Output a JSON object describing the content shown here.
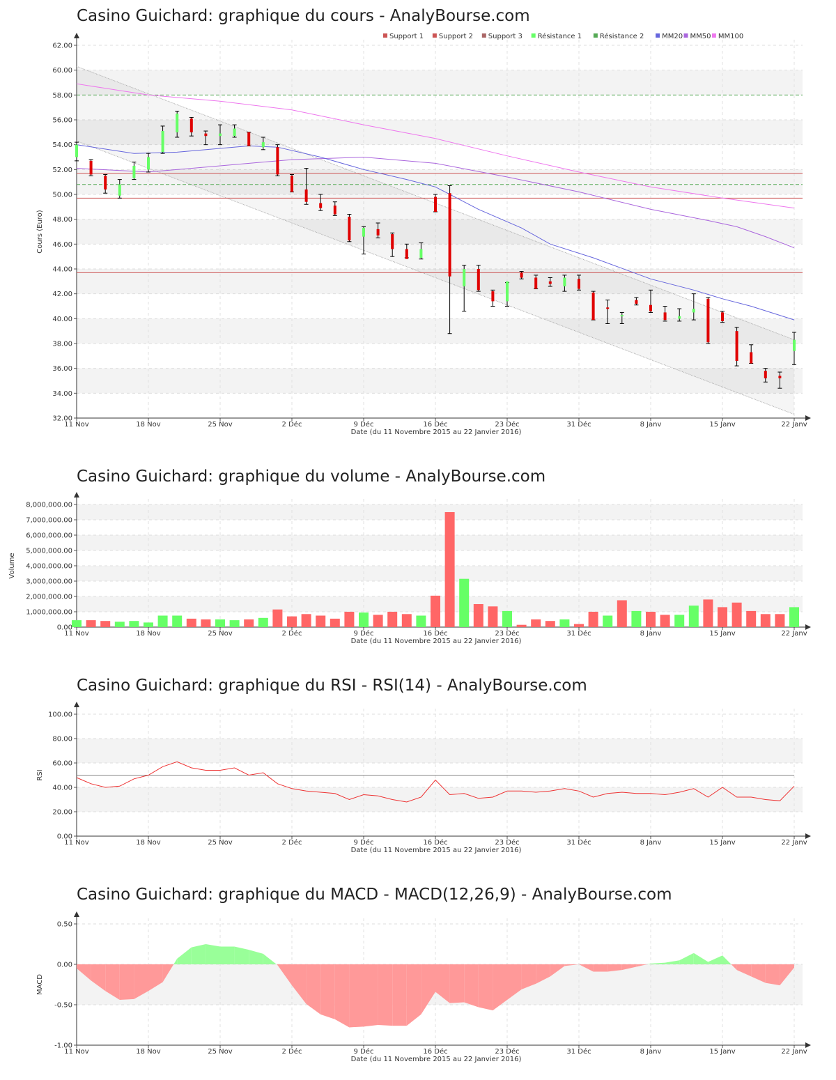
{
  "titles": {
    "price": "Casino Guichard: graphique du cours - AnalyBourse.com",
    "volume": "Casino Guichard: graphique du volume - AnalyBourse.com",
    "rsi": "Casino Guichard: graphique du RSI - RSI(14) - AnalyBourse.com",
    "macd": "Casino Guichard: graphique du MACD - MACD(12,26,9) - AnalyBourse.com"
  },
  "colors": {
    "up": "#66ff66",
    "down": "#e00000",
    "vol_up": "#66ff66",
    "vol_down": "#ff6666",
    "support": "#cc5555",
    "resistance": "#55aa55",
    "mm20": "#6666dd",
    "mm50": "#aa66dd",
    "mm100": "#ee77ee",
    "rsi": "#ee3333",
    "macd_pos": "#99ff99",
    "macd_neg": "#ff9999"
  },
  "chart_data": [
    {
      "id": "price",
      "type": "candlestick",
      "title": "Casino Guichard: graphique du cours - AnalyBourse.com",
      "xlabel": "Date (du 11 Novembre 2015 au 22 Janvier 2016)",
      "ylabel": "Cours (Euro)",
      "ylim": [
        32,
        62
      ],
      "yticks": [
        "32.00",
        "34.00",
        "36.00",
        "38.00",
        "40.00",
        "42.00",
        "44.00",
        "46.00",
        "48.00",
        "50.00",
        "52.00",
        "54.00",
        "56.00",
        "58.00",
        "60.00",
        "62.00"
      ],
      "xticks": [
        {
          "label": "11 Nov",
          "i": 0
        },
        {
          "label": "18 Nov",
          "i": 5
        },
        {
          "label": "25 Nov",
          "i": 10
        },
        {
          "label": "2 Déc",
          "i": 15
        },
        {
          "label": "9 Déc",
          "i": 20
        },
        {
          "label": "16 Déc",
          "i": 25
        },
        {
          "label": "23 Déc",
          "i": 30
        },
        {
          "label": "31 Déc",
          "i": 35
        },
        {
          "label": "8 Janv",
          "i": 40
        },
        {
          "label": "15 Janv",
          "i": 45
        },
        {
          "label": "22 Janv",
          "i": 50
        }
      ],
      "legend": [
        "Support 1",
        "Support 2",
        "Support 3",
        "Résistance 1",
        "Résistance 2",
        "MM20",
        "MM50",
        "MM100"
      ],
      "support": [
        51.7,
        49.7,
        43.7
      ],
      "resistance": [
        50.8,
        58.0
      ],
      "channel": {
        "upper": [
          60.3,
          38.3
        ],
        "lower": [
          54.3,
          32.3
        ]
      },
      "ohlc": [
        [
          53.0,
          54.2,
          52.7,
          54.0
        ],
        [
          52.7,
          52.8,
          51.5,
          51.6
        ],
        [
          51.5,
          51.6,
          50.1,
          50.4
        ],
        [
          49.9,
          51.2,
          49.7,
          50.8
        ],
        [
          51.3,
          52.6,
          51.2,
          52.3
        ],
        [
          52.0,
          53.3,
          51.8,
          53.0
        ],
        [
          53.4,
          55.5,
          53.3,
          55.1
        ],
        [
          55.0,
          56.7,
          54.6,
          56.5
        ],
        [
          56.1,
          56.2,
          54.7,
          55.0
        ],
        [
          54.9,
          55.1,
          54.0,
          54.7
        ],
        [
          54.7,
          55.6,
          54.0,
          54.9
        ],
        [
          54.7,
          55.6,
          54.6,
          55.3
        ],
        [
          55.0,
          55.0,
          53.9,
          53.9
        ],
        [
          53.8,
          54.6,
          53.6,
          54.2
        ],
        [
          53.8,
          54.0,
          51.5,
          51.6
        ],
        [
          51.5,
          51.6,
          50.2,
          50.2
        ],
        [
          50.4,
          52.1,
          49.2,
          49.4
        ],
        [
          49.3,
          50.0,
          48.7,
          48.9
        ],
        [
          49.1,
          49.4,
          48.3,
          48.4
        ],
        [
          48.2,
          48.4,
          46.2,
          46.3
        ],
        [
          46.6,
          47.4,
          45.2,
          47.3
        ],
        [
          47.2,
          47.7,
          46.5,
          46.7
        ],
        [
          46.8,
          46.9,
          45.0,
          45.6
        ],
        [
          45.6,
          46.0,
          44.9,
          44.8
        ],
        [
          44.9,
          46.1,
          44.8,
          45.6
        ],
        [
          49.8,
          50.0,
          48.6,
          48.6
        ],
        [
          50.1,
          50.7,
          38.8,
          43.4
        ],
        [
          42.6,
          44.3,
          40.6,
          44.0
        ],
        [
          44.0,
          44.3,
          42.2,
          42.3
        ],
        [
          42.2,
          42.3,
          41.0,
          41.4
        ],
        [
          41.4,
          42.9,
          41.0,
          43.0
        ],
        [
          43.7,
          43.8,
          43.2,
          43.3
        ],
        [
          43.3,
          43.5,
          42.4,
          42.4
        ],
        [
          43.0,
          43.3,
          42.6,
          42.8
        ],
        [
          42.6,
          43.5,
          42.2,
          43.3
        ],
        [
          43.2,
          43.5,
          42.3,
          42.4
        ],
        [
          42.1,
          42.2,
          39.9,
          39.9
        ],
        [
          40.9,
          41.5,
          39.6,
          40.8
        ],
        [
          40.2,
          40.5,
          39.6,
          40.3
        ],
        [
          41.5,
          41.7,
          41.1,
          41.2
        ],
        [
          41.1,
          42.3,
          40.5,
          40.6
        ],
        [
          40.5,
          41.0,
          39.8,
          39.9
        ],
        [
          40.0,
          40.8,
          39.8,
          40.2
        ],
        [
          40.5,
          42.0,
          39.9,
          40.8
        ],
        [
          41.6,
          41.7,
          38.0,
          38.1
        ],
        [
          40.5,
          40.6,
          39.7,
          39.8
        ],
        [
          39.0,
          39.3,
          36.2,
          36.6
        ],
        [
          37.3,
          37.9,
          36.4,
          36.4
        ],
        [
          35.8,
          36.0,
          34.9,
          35.2
        ],
        [
          35.4,
          35.7,
          34.4,
          35.2
        ],
        [
          37.4,
          38.9,
          36.3,
          38.3
        ]
      ],
      "mm20": [
        [
          0,
          54.0
        ],
        [
          4,
          53.3
        ],
        [
          7,
          53.4
        ],
        [
          12,
          53.9
        ],
        [
          14,
          53.8
        ],
        [
          17,
          53.0
        ],
        [
          20,
          52.0
        ],
        [
          23,
          51.2
        ],
        [
          25,
          50.6
        ],
        [
          28,
          48.8
        ],
        [
          31,
          47.3
        ],
        [
          33,
          46.0
        ],
        [
          36,
          44.9
        ],
        [
          40,
          43.2
        ],
        [
          43,
          42.3
        ],
        [
          45,
          41.6
        ],
        [
          47,
          41.0
        ],
        [
          50,
          39.9
        ]
      ],
      "mm50": [
        [
          0,
          52.1
        ],
        [
          5,
          51.8
        ],
        [
          10,
          52.3
        ],
        [
          15,
          52.8
        ],
        [
          20,
          53.0
        ],
        [
          25,
          52.5
        ],
        [
          30,
          51.4
        ],
        [
          35,
          50.2
        ],
        [
          40,
          48.8
        ],
        [
          44,
          47.9
        ],
        [
          46,
          47.4
        ],
        [
          48,
          46.6
        ],
        [
          50,
          45.7
        ]
      ],
      "mm100": [
        [
          0,
          58.9
        ],
        [
          5,
          58.0
        ],
        [
          10,
          57.5
        ],
        [
          15,
          56.8
        ],
        [
          20,
          55.6
        ],
        [
          25,
          54.5
        ],
        [
          30,
          53.1
        ],
        [
          35,
          51.8
        ],
        [
          40,
          50.6
        ],
        [
          45,
          49.7
        ],
        [
          50,
          48.9
        ]
      ]
    },
    {
      "id": "volume",
      "type": "bar",
      "title": "Casino Guichard: graphique du volume - AnalyBourse.com",
      "xlabel": "Date (du 11 Novembre 2015 au 22 Janvier 2016)",
      "ylabel": "Volume",
      "ylim": [
        0,
        8000000
      ],
      "yticks": [
        "0.00",
        "1,000,000.00",
        "2,000,000.00",
        "3,000,000.00",
        "4,000,000.00",
        "5,000,000.00",
        "6,000,000.00",
        "7,000,000.00",
        "8,000,000.00"
      ],
      "values": [
        450000,
        450000,
        400000,
        350000,
        400000,
        300000,
        750000,
        750000,
        550000,
        500000,
        500000,
        450000,
        500000,
        600000,
        1150000,
        700000,
        850000,
        750000,
        550000,
        1000000,
        950000,
        800000,
        1000000,
        850000,
        750000,
        2050000,
        7500000,
        3150000,
        1500000,
        1350000,
        1050000,
        150000,
        500000,
        400000,
        500000,
        200000,
        1000000,
        750000,
        1750000,
        1050000,
        1000000,
        800000,
        800000,
        1400000,
        1800000,
        1300000,
        1600000,
        1050000,
        850000,
        850000,
        1300000
      ],
      "up": [
        1,
        0,
        0,
        1,
        1,
        1,
        1,
        1,
        0,
        0,
        1,
        1,
        0,
        1,
        0,
        0,
        0,
        0,
        0,
        0,
        1,
        0,
        0,
        0,
        1,
        0,
        0,
        1,
        0,
        0,
        1,
        0,
        0,
        0,
        1,
        0,
        0,
        1,
        0,
        1,
        0,
        0,
        1,
        1,
        0,
        0,
        0,
        0,
        0,
        0,
        1
      ]
    },
    {
      "id": "rsi",
      "type": "line",
      "title": "Casino Guichard: graphique du RSI - RSI(14) - AnalyBourse.com",
      "xlabel": "Date (du 11 Novembre 2015 au 22 Janvier 2016)",
      "ylabel": "RSI",
      "ylim": [
        0,
        100
      ],
      "yticks": [
        "0.00",
        "20.00",
        "40.00",
        "60.00",
        "80.00",
        "100.00"
      ],
      "reference": 50,
      "values": [
        48,
        43,
        40,
        41,
        47,
        50,
        57,
        61,
        56,
        54,
        54,
        56,
        50,
        52,
        43,
        39,
        37,
        36,
        35,
        30,
        34,
        33,
        30,
        28,
        32,
        46,
        34,
        35,
        31,
        32,
        37,
        37,
        36,
        37,
        39,
        37,
        32,
        35,
        36,
        35,
        35,
        34,
        36,
        39,
        32,
        40,
        32,
        32,
        30,
        29,
        41
      ]
    },
    {
      "id": "macd",
      "type": "area",
      "title": "Casino Guichard: graphique du MACD - MACD(12,26,9) - AnalyBourse.com",
      "xlabel": "Date (du 11 Novembre 2015 au 22 Janvier 2016)",
      "ylabel": "MACD",
      "ylim": [
        -1.0,
        0.5
      ],
      "yticks": [
        "-1.00",
        "-0.50",
        "0.00",
        "0.50"
      ],
      "values": [
        -0.05,
        -0.2,
        -0.33,
        -0.44,
        -0.43,
        -0.33,
        -0.22,
        0.07,
        0.21,
        0.25,
        0.22,
        0.22,
        0.18,
        0.13,
        -0.01,
        -0.26,
        -0.49,
        -0.62,
        -0.68,
        -0.78,
        -0.77,
        -0.75,
        -0.76,
        -0.76,
        -0.62,
        -0.34,
        -0.48,
        -0.47,
        -0.53,
        -0.57,
        -0.44,
        -0.31,
        -0.24,
        -0.15,
        -0.02,
        0.0,
        -0.09,
        -0.09,
        -0.07,
        -0.03,
        0.01,
        0.02,
        0.05,
        0.14,
        0.03,
        0.11,
        -0.07,
        -0.15,
        -0.23,
        -0.26,
        -0.04
      ]
    }
  ]
}
